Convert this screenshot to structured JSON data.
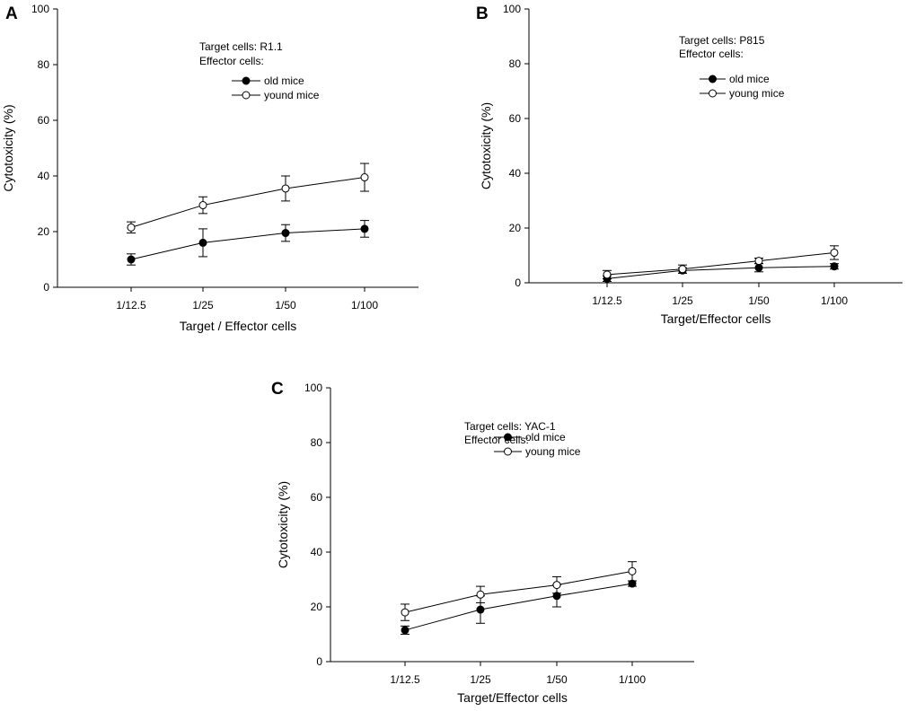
{
  "figure": {
    "description_visible": false
  },
  "chart_data": [
    {
      "panel": "A",
      "type": "line",
      "categories": [
        "1/12.5",
        "1/25",
        "1/50",
        "1/100"
      ],
      "xlabel": "Target / Effector cells",
      "ylabel": "Cytotoxicity (%)",
      "ylim": [
        0,
        100
      ],
      "yticks": [
        0,
        20,
        40,
        60,
        80,
        100
      ],
      "grid": false,
      "legend_position": "top-center",
      "notes": [
        "Target cells: R1.1",
        "Effector cells:"
      ],
      "series": [
        {
          "name": "old mice",
          "marker": "filled-circle",
          "values": [
            10,
            16,
            19.5,
            21
          ],
          "errors": [
            2,
            5,
            3,
            3
          ]
        },
        {
          "name": "yound mice",
          "marker": "open-circle",
          "values": [
            21.5,
            29.5,
            35.5,
            39.5
          ],
          "errors": [
            2,
            3,
            4.5,
            5
          ]
        }
      ]
    },
    {
      "panel": "B",
      "type": "line",
      "categories": [
        "1/12.5",
        "1/25",
        "1/50",
        "1/100"
      ],
      "xlabel": "Target/Effector cells",
      "ylabel": "Cytotoxicity (%)",
      "ylim": [
        0,
        100
      ],
      "yticks": [
        0,
        20,
        40,
        60,
        80,
        100
      ],
      "grid": false,
      "legend_position": "top-center",
      "notes": [
        "Target cells: P815",
        "Effector cells:"
      ],
      "series": [
        {
          "name": "old mice",
          "marker": "filled-circle",
          "values": [
            1.5,
            4.5,
            5.5,
            6
          ],
          "errors": [
            1,
            1,
            1.5,
            1
          ]
        },
        {
          "name": "young mice",
          "marker": "open-circle",
          "values": [
            3,
            5,
            8,
            11
          ],
          "errors": [
            1.5,
            1.5,
            1,
            2.5
          ]
        }
      ]
    },
    {
      "panel": "C",
      "type": "line",
      "categories": [
        "1/12.5",
        "1/25",
        "1/50",
        "1/100"
      ],
      "xlabel": "Target/Effector cells",
      "ylabel": "Cytotoxicity (%)",
      "ylim": [
        0,
        100
      ],
      "yticks": [
        0,
        20,
        40,
        60,
        80,
        100
      ],
      "grid": false,
      "legend_position": "top-center",
      "notes": [
        "Target cells: YAC-1",
        "Effector cells:"
      ],
      "series": [
        {
          "name": "old mice",
          "marker": "filled-circle",
          "values": [
            11.5,
            19,
            24,
            28.5
          ],
          "errors": [
            1.5,
            5,
            4,
            1
          ]
        },
        {
          "name": "young mice",
          "marker": "open-circle",
          "values": [
            18,
            24.5,
            28,
            33
          ],
          "errors": [
            3,
            3,
            3,
            3.5
          ]
        }
      ]
    }
  ]
}
